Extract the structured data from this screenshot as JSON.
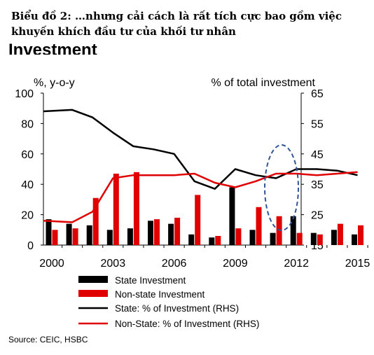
{
  "heading": {
    "title": "Biểu đồ 2: …nhưng cải cách là rất tích cực bao gồm việc khuyến khích đầu tư của khối tư nhân",
    "cut_title": "Investment"
  },
  "source": "Source: CEIC, HSBC",
  "chart_data": {
    "type": "bar",
    "x": [
      2000,
      2001,
      2002,
      2003,
      2004,
      2005,
      2006,
      2007,
      2008,
      2009,
      2010,
      2011,
      2012,
      2013,
      2014,
      2015
    ],
    "xticks": [
      "2000",
      "2003",
      "2006",
      "2009",
      "2012",
      "2015"
    ],
    "ylabel_left": "%, y-o-y",
    "ylabel_right": "% of total investment",
    "ylim_left": [
      0,
      100
    ],
    "yticks_left": [
      "0",
      "20",
      "40",
      "60",
      "80",
      "100"
    ],
    "ylim_right": [
      15,
      65
    ],
    "yticks_right": [
      "15",
      "25",
      "35",
      "45",
      "55",
      "65"
    ],
    "series": [
      {
        "name": "State Investment",
        "kind": "bar",
        "axis": "left",
        "color": "#000000",
        "values": [
          17,
          14,
          13,
          10,
          11,
          16,
          14,
          7,
          5,
          38,
          10,
          8,
          19,
          8,
          10,
          7
        ]
      },
      {
        "name": "Non-state Investment",
        "kind": "bar",
        "axis": "left",
        "color": "#e00000",
        "values": [
          10,
          11,
          31,
          47,
          48,
          17,
          18,
          33,
          6,
          11,
          25,
          19,
          8,
          7,
          14,
          13
        ]
      },
      {
        "name": "State: % of Investment (RHS)",
        "kind": "line",
        "axis": "right",
        "color": "#000000",
        "values": [
          59,
          59.5,
          57,
          52,
          47.5,
          46.5,
          45,
          36,
          33.5,
          40,
          38,
          37,
          40,
          40,
          39.5,
          38
        ]
      },
      {
        "name": "Non-State: % of Investment (RHS)",
        "kind": "line",
        "axis": "right",
        "color": "#e00000",
        "values": [
          23,
          22.5,
          26,
          37,
          38,
          38,
          38,
          38.5,
          35.5,
          34,
          36,
          38.5,
          38.5,
          38,
          38.5,
          39
        ]
      }
    ],
    "legend_position": "bottom-left",
    "annotation": "dashed ellipse around 2014-2015",
    "grid": false
  }
}
